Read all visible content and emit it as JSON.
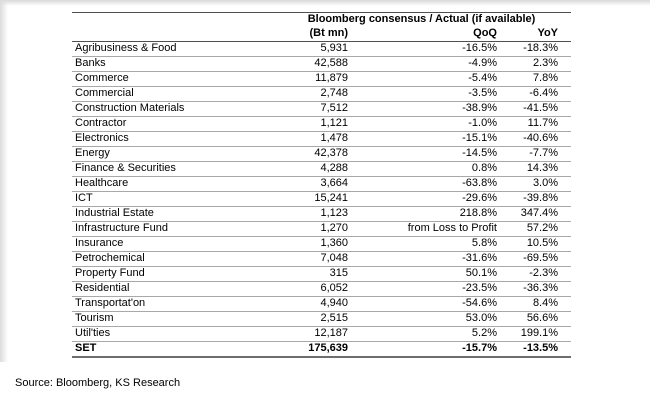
{
  "table": {
    "group_header": "Bloomberg consensus / Actual (if available)",
    "col_headers": {
      "sector": "",
      "bt_mn": "(Bt mn)",
      "qoq": "QoQ",
      "yoy": "YoY"
    },
    "rows": [
      [
        "Agribusiness & Food",
        "5,931",
        "-16.5%",
        "-18.3%"
      ],
      [
        "Banks",
        "42,588",
        "-4.9%",
        "2.3%"
      ],
      [
        "Commerce",
        "11,879",
        "-5.4%",
        "7.8%"
      ],
      [
        "Commercial",
        "2,748",
        "-3.5%",
        "-6.4%"
      ],
      [
        "Construction Materials",
        "7,512",
        "-38.9%",
        "-41.5%"
      ],
      [
        "Contractor",
        "1,121",
        "-1.0%",
        "11.7%"
      ],
      [
        "Electronics",
        "1,478",
        "-15.1%",
        "-40.6%"
      ],
      [
        "Energy",
        "42,378",
        "-14.5%",
        "-7.7%"
      ],
      [
        "Finance & Securities",
        "4,288",
        "0.8%",
        "14.3%"
      ],
      [
        "Healthcare",
        "3,664",
        "-63.8%",
        "3.0%"
      ],
      [
        "ICT",
        "15,241",
        "-29.6%",
        "-39.8%"
      ],
      [
        "Industrial Estate",
        "1,123",
        "218.8%",
        "347.4%"
      ],
      [
        "Infrastructure Fund",
        "1,270",
        "from Loss to Profit",
        "57.2%"
      ],
      [
        "Insurance",
        "1,360",
        "5.8%",
        "10.5%"
      ],
      [
        "Petrochemical",
        "7,048",
        "-31.6%",
        "-69.5%"
      ],
      [
        "Property Fund",
        "315",
        "50.1%",
        "-2.3%"
      ],
      [
        "Residential",
        "6,052",
        "-23.5%",
        "-36.3%"
      ],
      [
        "Transportat'on",
        "4,940",
        "-54.6%",
        "8.4%"
      ],
      [
        "Tourism",
        "2,515",
        "53.0%",
        "56.6%"
      ],
      [
        "Util'ties",
        "12,187",
        "5.2%",
        "199.1%"
      ]
    ],
    "total": [
      "SET",
      "175,639",
      "-15.7%",
      "-13.5%"
    ]
  },
  "source_note": "Source: Bloomberg, KS Research",
  "colors": {
    "border_dark": "#4f4f4f",
    "border_light": "#a8a8a8",
    "border_total": "#6e6e6e",
    "text": "#000000"
  }
}
